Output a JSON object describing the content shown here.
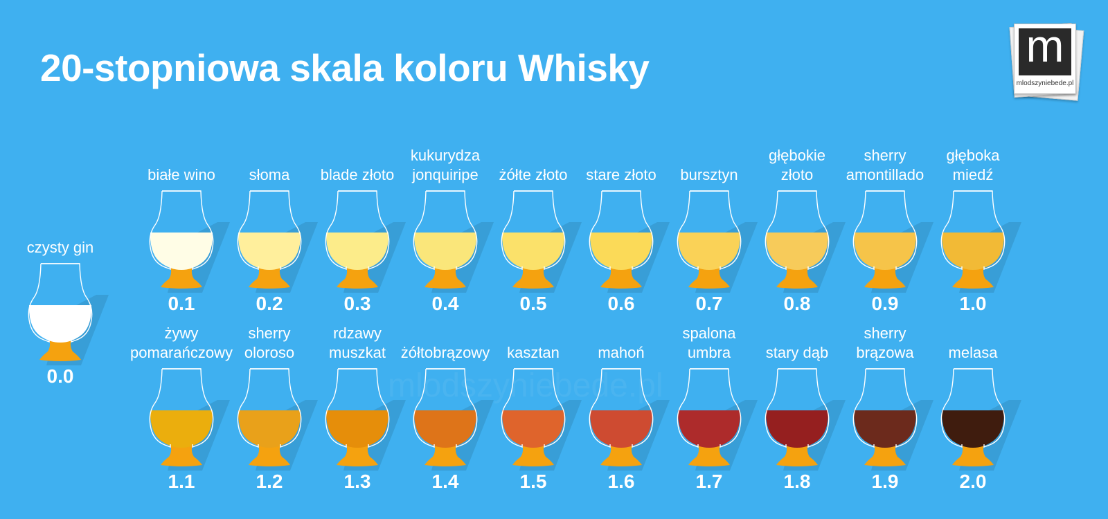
{
  "title": "20-stopniowa skala koloru Whisky",
  "logo": {
    "letter": "m",
    "site": "mlodszyniebede.pl"
  },
  "colors": {
    "background": "#3fb0f0",
    "stem": "#f5a20f",
    "glass_outline": "#ffffff"
  },
  "glasses": [
    {
      "label": [
        "czysty gin"
      ],
      "value": "0.0",
      "color": "#ffffff"
    },
    {
      "label": [
        "białe wino"
      ],
      "value": "0.1",
      "color": "#fffde6"
    },
    {
      "label": [
        "słoma"
      ],
      "value": "0.2",
      "color": "#ffef9c"
    },
    {
      "label": [
        "blade złoto"
      ],
      "value": "0.3",
      "color": "#fcec8a"
    },
    {
      "label": [
        "kukurydza",
        "jonquiripe"
      ],
      "value": "0.4",
      "color": "#fae67a"
    },
    {
      "label": [
        "żółte złoto"
      ],
      "value": "0.5",
      "color": "#fbe16a"
    },
    {
      "label": [
        "stare złoto"
      ],
      "value": "0.6",
      "color": "#fbda58"
    },
    {
      "label": [
        "bursztyn"
      ],
      "value": "0.7",
      "color": "#fad257"
    },
    {
      "label": [
        "głębokie",
        "złoto"
      ],
      "value": "0.8",
      "color": "#f7cb5a"
    },
    {
      "label": [
        "sherry",
        "amontillado"
      ],
      "value": "0.9",
      "color": "#f6c449"
    },
    {
      "label": [
        "głęboka",
        "miedź"
      ],
      "value": "1.0",
      "color": "#f2ba36"
    },
    {
      "label": [
        "żywy",
        "pomarańczowy"
      ],
      "value": "1.1",
      "color": "#ebae0d"
    },
    {
      "label": [
        "sherry",
        "oloroso"
      ],
      "value": "1.2",
      "color": "#e9a11a"
    },
    {
      "label": [
        "rdzawy",
        "muszkat"
      ],
      "value": "1.3",
      "color": "#e68e0a"
    },
    {
      "label": [
        "żółtobrązowy"
      ],
      "value": "1.4",
      "color": "#de7419"
    },
    {
      "label": [
        "kasztan"
      ],
      "value": "1.5",
      "color": "#df642c"
    },
    {
      "label": [
        "mahoń"
      ],
      "value": "1.6",
      "color": "#ce4b31"
    },
    {
      "label": [
        "spalona",
        "umbra"
      ],
      "value": "1.7",
      "color": "#ad2b2b"
    },
    {
      "label": [
        "stary dąb"
      ],
      "value": "1.8",
      "color": "#951f1f"
    },
    {
      "label": [
        "sherry",
        "brązowa"
      ],
      "value": "1.9",
      "color": "#6c2a1c"
    },
    {
      "label": [
        "melasa"
      ],
      "value": "2.0",
      "color": "#3f1c0e"
    }
  ]
}
